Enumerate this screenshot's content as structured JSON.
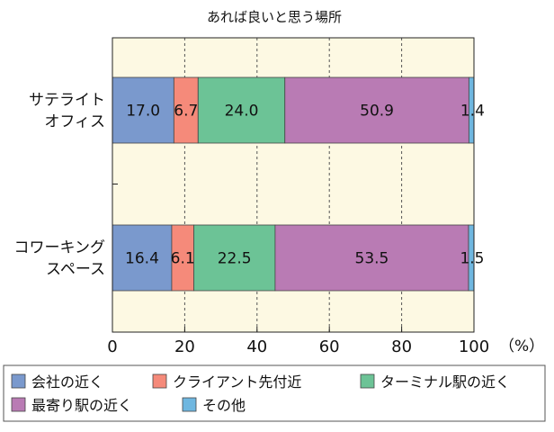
{
  "chart_data": {
    "type": "bar",
    "orientation": "horizontal",
    "stacked": true,
    "title": "あれば良いと思う場所",
    "categories": [
      {
        "lines": [
          "サテライト",
          "オフィス"
        ]
      },
      {
        "lines": [
          "コワーキング",
          "スペース"
        ]
      }
    ],
    "series": [
      {
        "name": "会社の近く",
        "color": "#7a99cd",
        "values": [
          17.0,
          16.4
        ]
      },
      {
        "name": "クライアント先付近",
        "color": "#f58a7a",
        "values": [
          6.7,
          6.1
        ]
      },
      {
        "name": "ターミナル駅の近く",
        "color": "#6cc396",
        "values": [
          24.0,
          22.5
        ]
      },
      {
        "name": "最寄り駅の近く",
        "color": "#b97bb4",
        "values": [
          50.9,
          53.5
        ]
      },
      {
        "name": "その他",
        "color": "#6fb7e0",
        "values": [
          1.4,
          1.5
        ]
      }
    ],
    "data_labels": [
      [
        "17.0",
        "6.7",
        "24.0",
        "50.9",
        "1.4"
      ],
      [
        "16.4",
        "6.1",
        "22.5",
        "53.5",
        "1.5"
      ]
    ],
    "xlim": [
      0,
      100
    ],
    "xticks": [
      "0",
      "20",
      "40",
      "60",
      "80",
      "100"
    ],
    "x_unit": "（%）",
    "grid": "vertical-dashed",
    "legend_position": "bottom",
    "plot_background": "#fdf9e3"
  }
}
